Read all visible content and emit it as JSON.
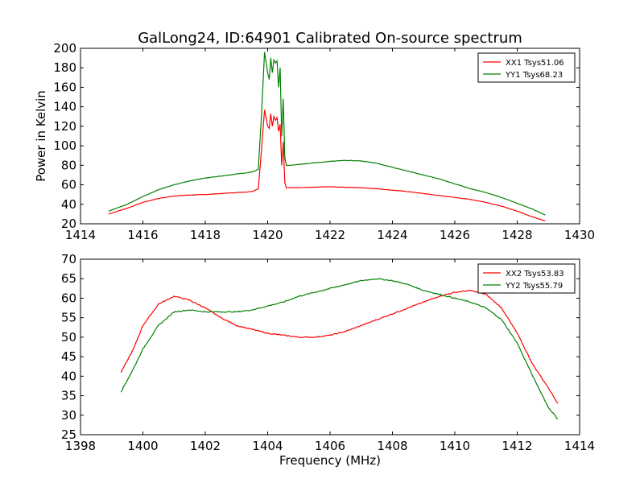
{
  "figure_title": "GalLong24, ID:64901 Calibrated On-source spectrum",
  "chart_data": [
    {
      "type": "line",
      "title": "GalLong24, ID:64901 Calibrated On-source spectrum",
      "xlabel": "",
      "ylabel": "Power in Kelvin",
      "xlim": [
        1414,
        1430
      ],
      "ylim": [
        20,
        200
      ],
      "xticks": [
        1414,
        1416,
        1418,
        1420,
        1422,
        1424,
        1426,
        1428,
        1430
      ],
      "yticks": [
        20,
        40,
        60,
        80,
        100,
        120,
        140,
        160,
        180,
        200
      ],
      "legend_position": "top-right",
      "series": [
        {
          "name": "XX1 Tsys51.06",
          "color": "#ff0000",
          "x": [
            1414.9,
            1415.5,
            1416.0,
            1416.5,
            1417.0,
            1417.5,
            1418.0,
            1418.5,
            1419.0,
            1419.5,
            1419.7,
            1419.8,
            1419.9,
            1420.0,
            1420.05,
            1420.1,
            1420.15,
            1420.2,
            1420.25,
            1420.3,
            1420.35,
            1420.4,
            1420.45,
            1420.5,
            1420.55,
            1420.6,
            1420.7,
            1421.0,
            1421.5,
            1422.0,
            1422.5,
            1423.0,
            1423.5,
            1424.0,
            1424.5,
            1425.0,
            1425.5,
            1426.0,
            1426.5,
            1427.0,
            1427.5,
            1428.0,
            1428.5,
            1428.9
          ],
          "values": [
            30,
            36,
            42,
            46,
            48.5,
            49.5,
            50,
            51,
            52,
            53,
            56,
            95,
            137,
            120,
            118,
            133,
            120,
            130,
            126,
            129,
            115,
            122,
            80,
            104,
            62,
            57,
            57,
            57,
            57.5,
            58,
            57.5,
            57,
            56,
            54.5,
            53,
            51,
            49,
            47,
            45,
            42,
            38,
            33,
            27,
            23
          ]
        },
        {
          "name": "YY1 Tsys68.23",
          "color": "#008000",
          "x": [
            1414.9,
            1415.5,
            1416.0,
            1416.5,
            1417.0,
            1417.5,
            1418.0,
            1418.5,
            1419.0,
            1419.5,
            1419.7,
            1419.8,
            1419.9,
            1420.0,
            1420.05,
            1420.1,
            1420.15,
            1420.2,
            1420.25,
            1420.3,
            1420.35,
            1420.4,
            1420.45,
            1420.5,
            1420.55,
            1420.6,
            1420.7,
            1421.0,
            1421.5,
            1422.0,
            1422.5,
            1423.0,
            1423.5,
            1424.0,
            1424.5,
            1425.0,
            1425.5,
            1426.0,
            1426.5,
            1427.0,
            1427.5,
            1428.0,
            1428.5,
            1428.9
          ],
          "values": [
            33,
            40,
            48,
            55,
            60,
            64,
            67,
            69,
            71,
            73,
            76,
            130,
            196,
            175,
            168,
            190,
            175,
            188,
            185,
            187,
            160,
            180,
            110,
            148,
            88,
            80,
            80,
            81,
            82.5,
            84,
            85,
            84.5,
            82,
            78,
            74,
            70,
            66,
            61,
            56,
            52,
            47,
            41,
            35,
            29
          ]
        }
      ]
    },
    {
      "type": "line",
      "title": "",
      "xlabel": "Frequency (MHz)",
      "ylabel": "",
      "xlim": [
        1398,
        1414
      ],
      "ylim": [
        25,
        70
      ],
      "xticks": [
        1398,
        1400,
        1402,
        1404,
        1406,
        1408,
        1410,
        1412,
        1414
      ],
      "yticks": [
        25,
        30,
        35,
        40,
        45,
        50,
        55,
        60,
        65,
        70
      ],
      "legend_position": "top-right",
      "series": [
        {
          "name": "XX2 Tsys53.83",
          "color": "#ff0000",
          "x": [
            1399.3,
            1399.7,
            1400.0,
            1400.5,
            1401.0,
            1401.5,
            1402.0,
            1402.5,
            1403.0,
            1403.5,
            1404.0,
            1404.5,
            1405.0,
            1405.5,
            1406.0,
            1406.5,
            1407.0,
            1407.5,
            1408.0,
            1408.5,
            1409.0,
            1409.5,
            1410.0,
            1410.5,
            1411.0,
            1411.5,
            1412.0,
            1412.5,
            1413.0,
            1413.3
          ],
          "values": [
            41,
            47,
            53,
            58.5,
            60.5,
            59.5,
            57.5,
            55,
            53,
            52,
            51,
            50.5,
            50,
            50,
            50.5,
            51.5,
            53,
            54.5,
            56,
            57.5,
            59,
            60.5,
            61.5,
            62,
            61,
            57.5,
            51,
            43,
            37,
            33
          ]
        },
        {
          "name": "YY2 Tsys55.79",
          "color": "#008000",
          "x": [
            1399.3,
            1399.7,
            1400.0,
            1400.5,
            1401.0,
            1401.5,
            1402.0,
            1402.5,
            1403.0,
            1403.5,
            1404.0,
            1404.5,
            1405.0,
            1405.5,
            1406.0,
            1406.5,
            1407.0,
            1407.5,
            1408.0,
            1408.5,
            1409.0,
            1409.5,
            1410.0,
            1410.5,
            1411.0,
            1411.5,
            1412.0,
            1412.5,
            1413.0,
            1413.3
          ],
          "values": [
            36,
            42,
            47,
            53,
            56.5,
            57,
            56.5,
            56.5,
            56.5,
            57,
            58,
            59,
            60.5,
            61.5,
            62.5,
            63.5,
            64.5,
            65,
            64.5,
            63.5,
            62,
            61,
            60,
            59,
            57.5,
            54.5,
            48.5,
            40,
            32,
            29
          ]
        }
      ]
    }
  ]
}
